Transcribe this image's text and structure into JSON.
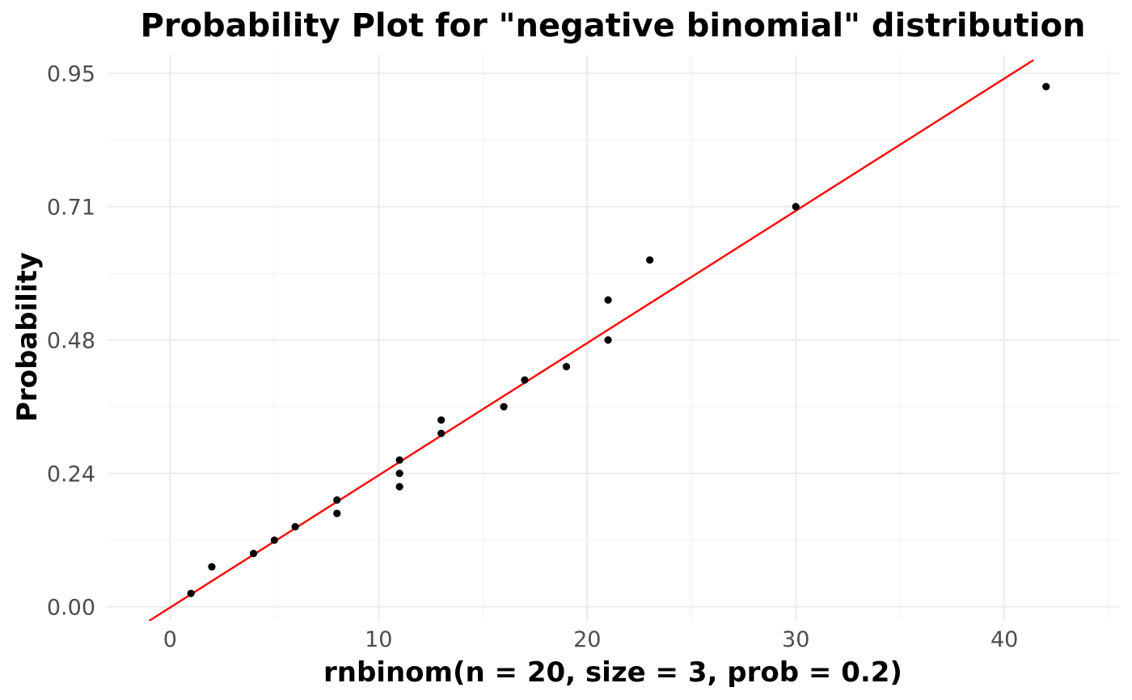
{
  "chart_data": {
    "type": "scatter",
    "title": "Probability Plot for \"negative binomial\" distribution",
    "xlabel": "rnbinom(n = 20, size = 3, prob = 0.2)",
    "ylabel": "Probability",
    "xlim": [
      -3,
      45.5
    ],
    "ylim": [
      -0.025,
      0.985
    ],
    "x_ticks": [
      0,
      10,
      20,
      30,
      40
    ],
    "x_tick_labels": [
      "0",
      "10",
      "20",
      "30",
      "40"
    ],
    "x_minor_ticks": [
      5,
      15,
      25,
      35,
      45
    ],
    "y_ticks": [
      0.0,
      0.2381,
      0.4762,
      0.7143,
      0.9524
    ],
    "y_tick_labels": [
      "0.00",
      "0.24",
      "0.48",
      "0.71",
      "0.95"
    ],
    "y_minor_ticks": [
      0.119,
      0.3571,
      0.5952,
      0.8333
    ],
    "grid": true,
    "legend": "none",
    "series": [
      {
        "values": [
          {
            "x": 1,
            "y": 0.0238
          },
          {
            "x": 2,
            "y": 0.0714
          },
          {
            "x": 4,
            "y": 0.0952
          },
          {
            "x": 5,
            "y": 0.119
          },
          {
            "x": 6,
            "y": 0.1429
          },
          {
            "x": 8,
            "y": 0.1667
          },
          {
            "x": 8,
            "y": 0.1905
          },
          {
            "x": 11,
            "y": 0.2143
          },
          {
            "x": 11,
            "y": 0.2381
          },
          {
            "x": 11,
            "y": 0.2619
          },
          {
            "x": 13,
            "y": 0.3095
          },
          {
            "x": 13,
            "y": 0.3333
          },
          {
            "x": 16,
            "y": 0.3571
          },
          {
            "x": 17,
            "y": 0.4048
          },
          {
            "x": 19,
            "y": 0.4286
          },
          {
            "x": 21,
            "y": 0.4762
          },
          {
            "x": 21,
            "y": 0.5476
          },
          {
            "x": 23,
            "y": 0.619
          },
          {
            "x": 30,
            "y": 0.7143
          },
          {
            "x": 42,
            "y": 0.9286
          }
        ],
        "color": "#000000"
      }
    ],
    "reference_line": {
      "x": [
        -1.0,
        41.4
      ],
      "y": [
        -0.025,
        0.976
      ],
      "color": "#ff0000"
    }
  }
}
